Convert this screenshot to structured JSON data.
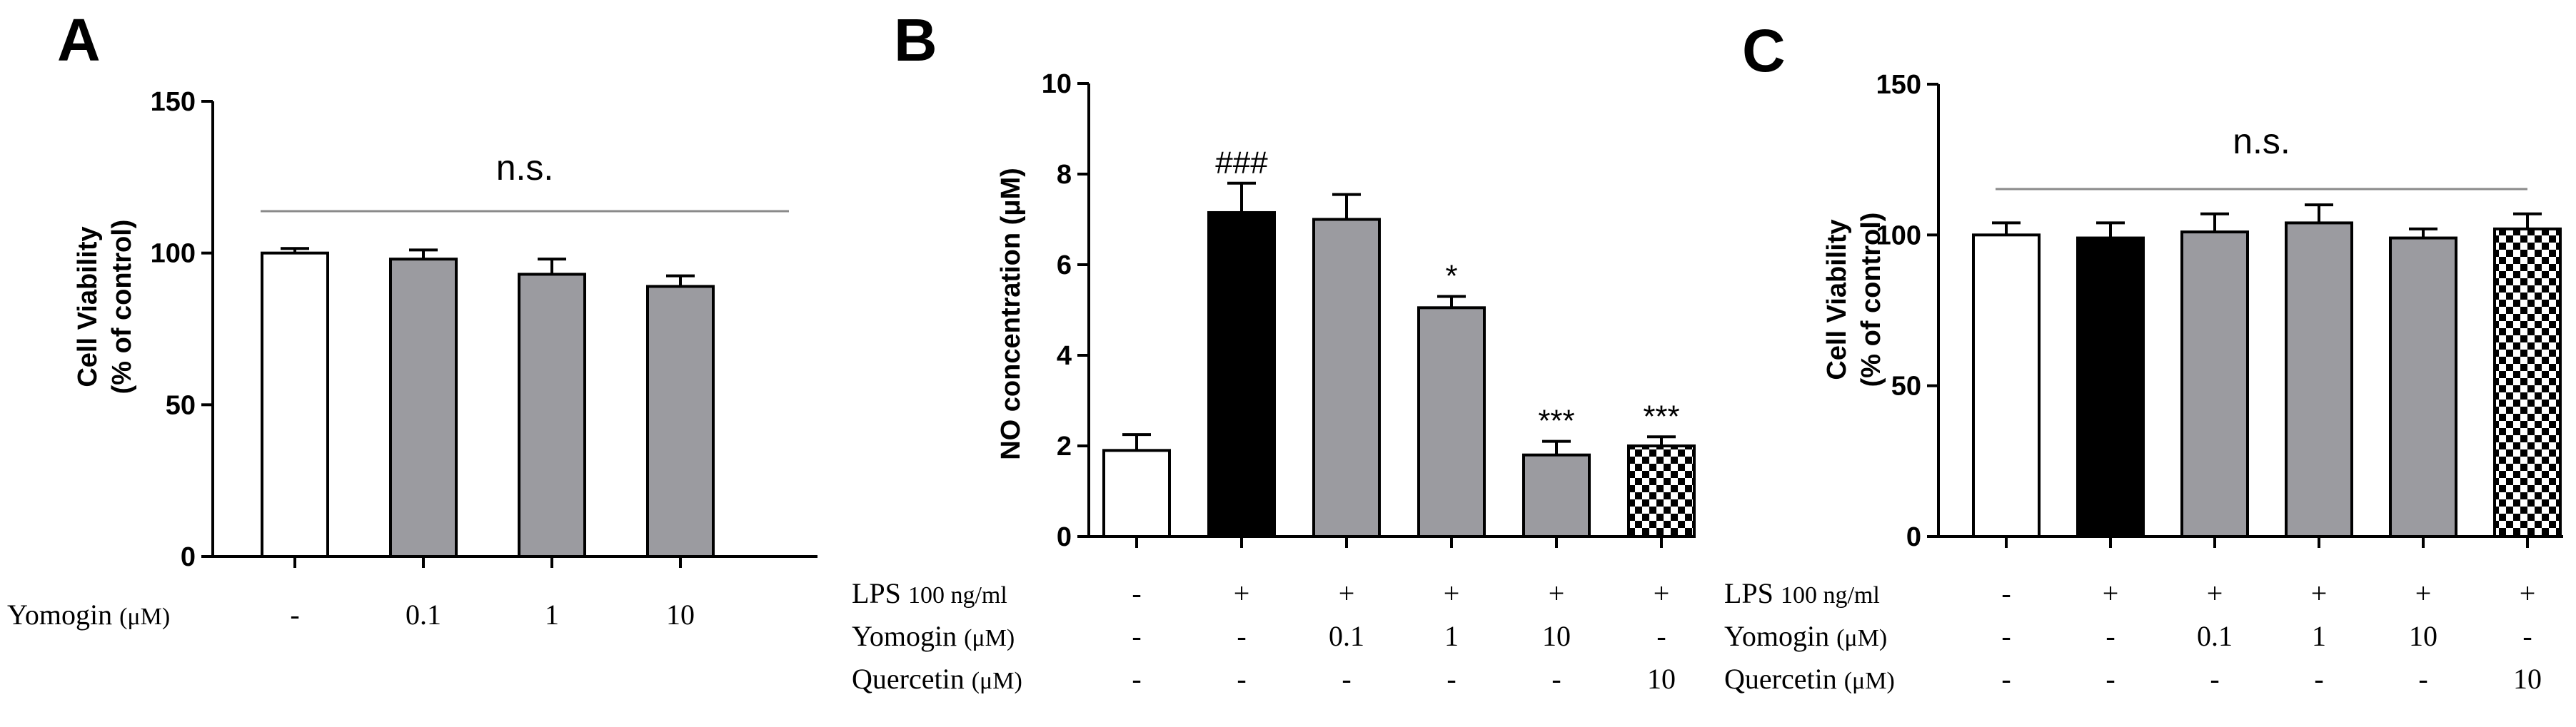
{
  "chart_data": [
    {
      "panel": "A",
      "type": "bar",
      "ylabel": [
        "Cell Viability",
        "(% of control)"
      ],
      "ylim": [
        0,
        150
      ],
      "yticks": [
        0,
        50,
        100,
        150
      ],
      "values": [
        100,
        98,
        93,
        89
      ],
      "errors": [
        1.5,
        3,
        5,
        3.5
      ],
      "fills": [
        "white",
        "gray",
        "gray",
        "gray"
      ],
      "sig": [
        "",
        "",
        "",
        ""
      ],
      "bracket": {
        "label": "n.s."
      },
      "rows": [
        {
          "label": "Yomogin",
          "unit": "(μM)",
          "values": [
            "-",
            "0.1",
            "1",
            "10"
          ]
        }
      ]
    },
    {
      "panel": "B",
      "type": "bar",
      "ylabel": [
        "NO concentration (μM)"
      ],
      "ylim": [
        0,
        10
      ],
      "yticks": [
        0,
        2,
        4,
        6,
        8,
        10
      ],
      "values": [
        1.9,
        7.15,
        7.0,
        5.05,
        1.8,
        2.0
      ],
      "errors": [
        0.35,
        0.65,
        0.55,
        0.25,
        0.3,
        0.2
      ],
      "fills": [
        "white",
        "black",
        "gray",
        "gray",
        "gray",
        "checker"
      ],
      "sig": [
        "",
        "###",
        "",
        "*",
        "***",
        "***"
      ],
      "rows": [
        {
          "label": "LPS",
          "unit": "100 ng/ml",
          "values": [
            "-",
            "+",
            "+",
            "+",
            "+",
            "+"
          ]
        },
        {
          "label": "Yomogin",
          "unit": "(μM)",
          "values": [
            "-",
            "-",
            "0.1",
            "1",
            "10",
            "-"
          ]
        },
        {
          "label": "Quercetin",
          "unit": "(μM)",
          "values": [
            "-",
            "-",
            "-",
            "-",
            "-",
            "10"
          ]
        }
      ]
    },
    {
      "panel": "C",
      "type": "bar",
      "ylabel": [
        "Cell Viability",
        "(% of control)"
      ],
      "ylim": [
        0,
        150
      ],
      "yticks": [
        0,
        50,
        100,
        150
      ],
      "values": [
        100,
        99,
        101,
        104,
        99,
        102
      ],
      "errors": [
        4,
        5,
        6,
        6,
        3,
        5
      ],
      "fills": [
        "white",
        "black",
        "gray",
        "gray",
        "gray",
        "checker"
      ],
      "sig": [
        "",
        "",
        "",
        "",
        "",
        ""
      ],
      "bracket": {
        "label": "n.s."
      },
      "rows": [
        {
          "label": "LPS",
          "unit": "100 ng/ml",
          "values": [
            "-",
            "+",
            "+",
            "+",
            "+",
            "+"
          ]
        },
        {
          "label": "Yomogin",
          "unit": "(μM)",
          "values": [
            "-",
            "-",
            "0.1",
            "1",
            "10",
            "-"
          ]
        },
        {
          "label": "Quercetin",
          "unit": "(μM)",
          "values": [
            "-",
            "-",
            "-",
            "-",
            "-",
            "10"
          ]
        }
      ]
    }
  ],
  "colors": {
    "gray": "#9b9ba0",
    "black": "#000000",
    "white": "#ffffff",
    "line": "#000000",
    "bracket": "#8a8a8a"
  }
}
